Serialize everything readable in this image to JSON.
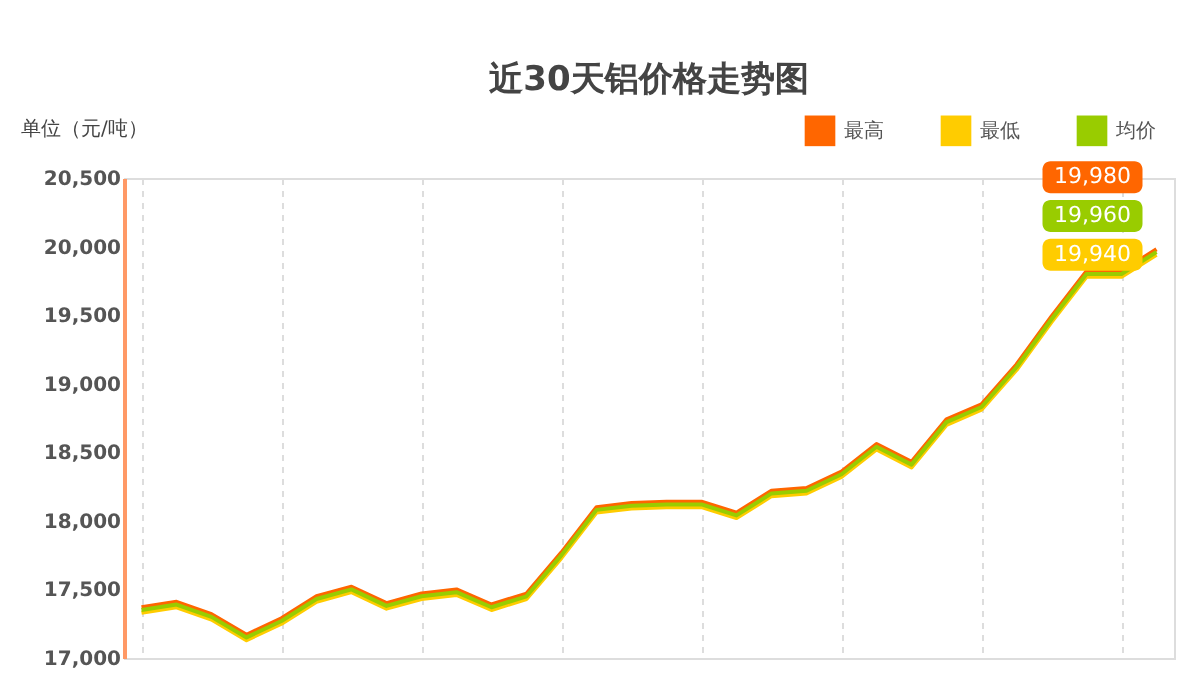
{
  "chart_data": {
    "type": "line",
    "title": "近30天铝价格走势图",
    "ylabel": "单位（元/吨）",
    "categories": [
      null,
      null,
      null,
      null,
      null,
      null,
      null,
      null,
      null,
      null,
      null,
      null,
      null,
      null,
      null,
      null,
      null,
      null,
      null,
      null,
      null,
      null,
      null,
      null,
      null,
      null,
      null,
      null,
      null,
      null
    ],
    "ylim": [
      17000,
      20500
    ],
    "yticks": [
      {
        "value": 17000,
        "label": "17,000"
      },
      {
        "value": 17500,
        "label": "17,500"
      },
      {
        "value": 18000,
        "label": "18,000"
      },
      {
        "value": 18500,
        "label": "18,500"
      },
      {
        "value": 19000,
        "label": "19,000"
      },
      {
        "value": 19500,
        "label": "19,500"
      },
      {
        "value": 20000,
        "label": "20,000"
      },
      {
        "value": 20500,
        "label": "20,500"
      }
    ],
    "tick_labels": "y",
    "grid": "x",
    "legend": "top right",
    "line_style": "solid",
    "marker": "none",
    "series": [
      {
        "name": "最高",
        "color": "#ff6600",
        "values": [
          17370,
          17410,
          17320,
          17170,
          17290,
          17450,
          17520,
          17400,
          17470,
          17500,
          17390,
          17470,
          17770,
          18100,
          18130,
          18140,
          18140,
          18060,
          18220,
          18240,
          18360,
          18560,
          18430,
          18740,
          18850,
          19140,
          19490,
          19820,
          19820,
          19980
        ],
        "value_labels": [
          null,
          null,
          null,
          null,
          null,
          null,
          null,
          null,
          null,
          null,
          null,
          null,
          null,
          null,
          null,
          null,
          null,
          null,
          null,
          null,
          null,
          null,
          null,
          null,
          null,
          null,
          null,
          null,
          null,
          "19,980"
        ]
      },
      {
        "name": "最低",
        "color": "#ffcc00",
        "values": [
          17330,
          17370,
          17280,
          17130,
          17250,
          17410,
          17480,
          17360,
          17430,
          17460,
          17350,
          17430,
          17730,
          18060,
          18090,
          18100,
          18100,
          18020,
          18180,
          18200,
          18320,
          18520,
          18390,
          18700,
          18810,
          19100,
          19450,
          19780,
          19780,
          19940
        ],
        "value_labels": [
          null,
          null,
          null,
          null,
          null,
          null,
          null,
          null,
          null,
          null,
          null,
          null,
          null,
          null,
          null,
          null,
          null,
          null,
          null,
          null,
          null,
          null,
          null,
          null,
          null,
          null,
          null,
          null,
          null,
          "19,940"
        ]
      },
      {
        "name": "均价",
        "color": "#99cc00",
        "values": [
          17350,
          17390,
          17300,
          17150,
          17270,
          17430,
          17500,
          17380,
          17450,
          17480,
          17370,
          17450,
          17750,
          18080,
          18110,
          18120,
          18120,
          18040,
          18200,
          18220,
          18340,
          18540,
          18410,
          18720,
          18830,
          19120,
          19470,
          19800,
          19800,
          19960
        ],
        "value_labels": [
          null,
          null,
          null,
          null,
          null,
          null,
          null,
          null,
          null,
          null,
          null,
          null,
          null,
          null,
          null,
          null,
          null,
          null,
          null,
          null,
          null,
          null,
          null,
          null,
          null,
          null,
          null,
          null,
          null,
          "19,960"
        ]
      }
    ]
  }
}
